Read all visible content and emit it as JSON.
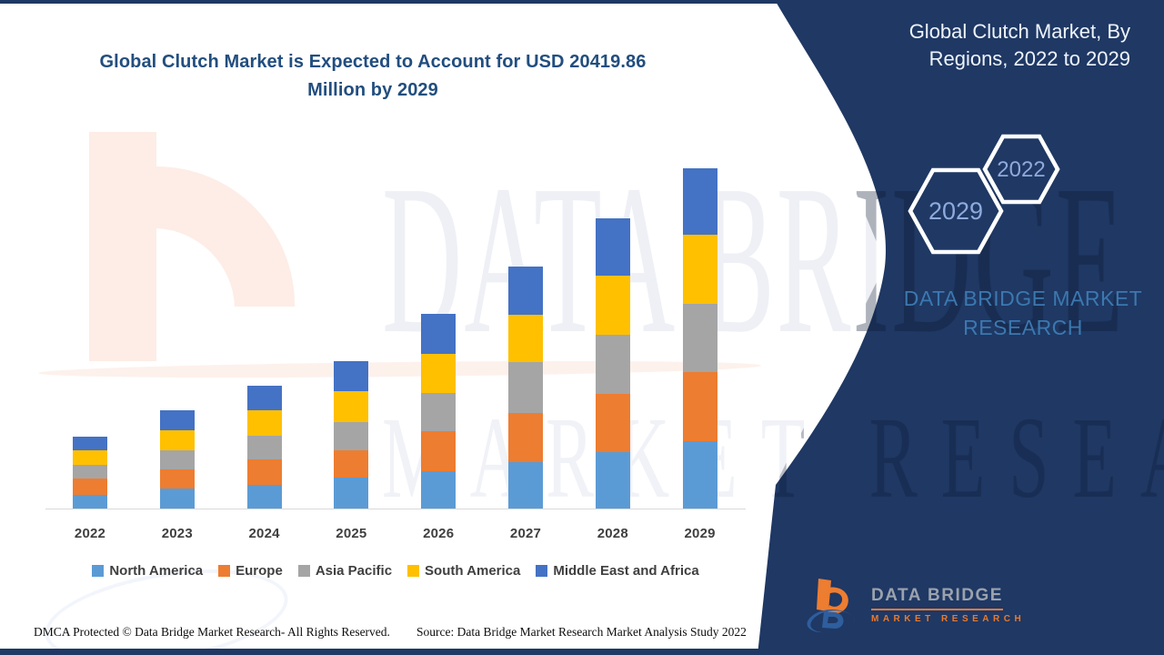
{
  "header": {
    "title_line1": "Global Clutch Market is Expected to Account for USD 20419.86",
    "title_line2": "Million by 2029"
  },
  "panel": {
    "title_line1": "Global Clutch Market, By",
    "title_line2": "Regions, 2022 to 2029",
    "hexagons": [
      {
        "label": "2029"
      },
      {
        "label": "2022"
      }
    ],
    "brand_text": "DATA BRIDGE MARKET RESEARCH",
    "background_color": "#1f3864",
    "hexagon_text_color": "#8faadc",
    "brand_text_color": "#3b78b0"
  },
  "watermark": {
    "line1": "DATA BRIDGE",
    "line2": "MARKET RESEARCH"
  },
  "logo": {
    "line1": "DATA BRIDGE",
    "line2": "MARKET RESEARCH"
  },
  "footer": {
    "dmca": "DMCA Protected © Data Bridge Market Research- All Rights Reserved.",
    "source": "Source: Data Bridge Market Research Market Analysis Study 2022"
  },
  "chart_data": {
    "type": "bar",
    "subtype": "stacked-column",
    "title": "Global Clutch Market is Expected to Account for USD 20419.86 Million by 2029",
    "unit": "USD Million",
    "categories": [
      "2022",
      "2023",
      "2024",
      "2025",
      "2026",
      "2027",
      "2028",
      "2029"
    ],
    "series": [
      {
        "name": "North America",
        "color": "#5b9bd5",
        "values": [
          820,
          1200,
          1420,
          1855,
          2240,
          2785,
          3385,
          4040
        ]
      },
      {
        "name": "Europe",
        "color": "#ed7d31",
        "values": [
          985,
          1145,
          1530,
          1640,
          2400,
          2950,
          3495,
          4150
        ]
      },
      {
        "name": "Asia Pacific",
        "color": "#a5a5a5",
        "values": [
          820,
          1145,
          1420,
          1695,
          2290,
          3060,
          3550,
          4095
        ]
      },
      {
        "name": "South America",
        "color": "#ffc000",
        "values": [
          875,
          1200,
          1530,
          1855,
          2350,
          2840,
          3550,
          4150
        ]
      },
      {
        "name": "Middle East and Africa",
        "color": "#4472c4",
        "values": [
          820,
          1200,
          1475,
          1800,
          2400,
          2895,
          3440,
          3984.86
        ]
      }
    ],
    "totals": [
      4320,
      5890,
      7375,
      8845,
      11680,
      14530,
      17420,
      20419.86
    ],
    "ylim": [
      0,
      20419.86
    ],
    "y_axis_shown": false,
    "gridlines": false,
    "legend_position": "bottom",
    "note": "No value axis shown in source; segment values estimated from bar heights so that 2029 total equals 20419.86 USD Million."
  }
}
